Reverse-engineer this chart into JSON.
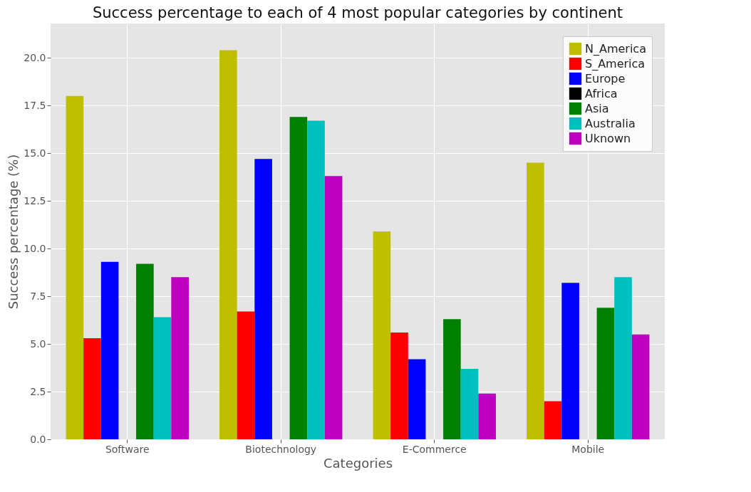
{
  "chart_data": {
    "type": "bar",
    "title": "Success percentage to each of 4 most popular categories by continent",
    "xlabel": "Categories",
    "ylabel": "Success percentage (%)",
    "categories": [
      "Software",
      "Biotechnology",
      "E-Commerce",
      "Mobile"
    ],
    "series": [
      {
        "name": "N_America",
        "color": "#bfbf00",
        "values": [
          18.0,
          20.4,
          10.9,
          14.5
        ]
      },
      {
        "name": "S_America",
        "color": "#ff0000",
        "values": [
          5.3,
          6.7,
          5.6,
          2.0
        ]
      },
      {
        "name": "Europe",
        "color": "#0000ff",
        "values": [
          9.3,
          14.7,
          4.2,
          8.2
        ]
      },
      {
        "name": "Africa",
        "color": "#000000",
        "values": [
          0,
          0,
          0,
          0
        ]
      },
      {
        "name": "Asia",
        "color": "#008000",
        "values": [
          9.2,
          16.9,
          6.3,
          6.9
        ]
      },
      {
        "name": "Australia",
        "color": "#00bfbf",
        "values": [
          6.4,
          16.7,
          3.7,
          8.5
        ]
      },
      {
        "name": "Uknown",
        "color": "#bf00bf",
        "values": [
          8.5,
          13.8,
          2.4,
          5.5
        ]
      }
    ],
    "ylim": [
      0,
      21.8
    ],
    "yticks": [
      {
        "value": 0,
        "label": "0.0"
      },
      {
        "value": 2.5,
        "label": "2.5"
      },
      {
        "value": 5,
        "label": "5.0"
      },
      {
        "value": 7.5,
        "label": "7.5"
      },
      {
        "value": 10,
        "label": "10.0"
      },
      {
        "value": 12.5,
        "label": "12.5"
      },
      {
        "value": 15,
        "label": "15.0"
      },
      {
        "value": 17.5,
        "label": "17.5"
      },
      {
        "value": 20,
        "label": "20.0"
      }
    ],
    "grid": true,
    "legend": "top right"
  }
}
